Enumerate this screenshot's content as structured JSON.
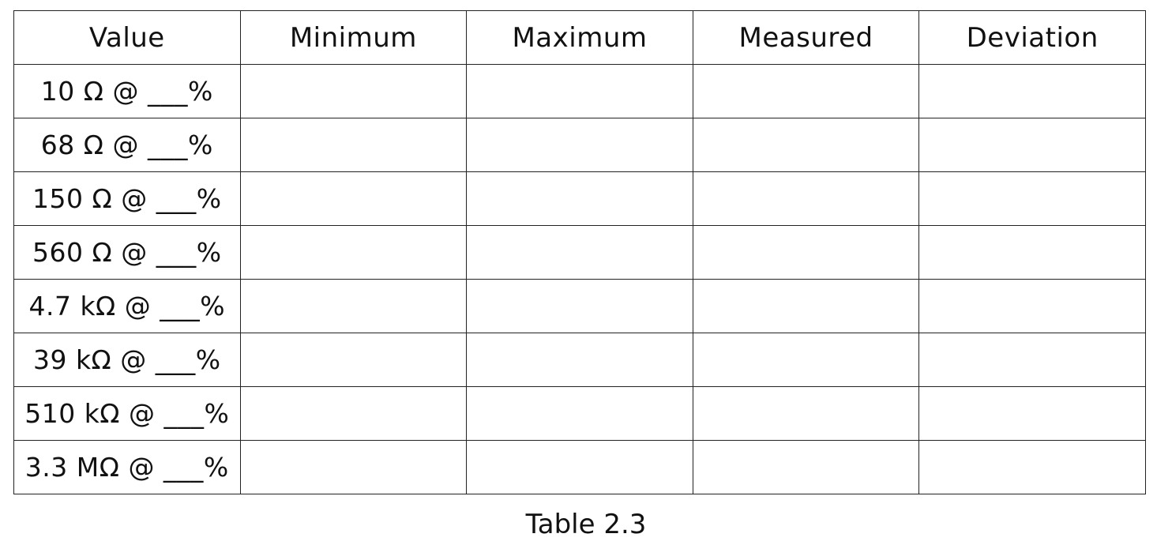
{
  "table": {
    "headers": [
      "Value",
      "Minimum",
      "Maximum",
      "Measured",
      "Deviation"
    ],
    "rows": [
      [
        "10 Ω @ ___%",
        "",
        "",
        "",
        ""
      ],
      [
        "68 Ω @ ___%",
        "",
        "",
        "",
        ""
      ],
      [
        "150 Ω @ ___%",
        "",
        "",
        "",
        ""
      ],
      [
        "560 Ω @ ___%",
        "",
        "",
        "",
        ""
      ],
      [
        "4.7 kΩ @ ___%",
        "",
        "",
        "",
        ""
      ],
      [
        "39 kΩ @ ___%",
        "",
        "",
        "",
        ""
      ],
      [
        "510 kΩ @ ___%",
        "",
        "",
        "",
        ""
      ],
      [
        "3.3 MΩ @ ___%",
        "",
        "",
        "",
        ""
      ]
    ]
  },
  "caption": "Table 2.3"
}
